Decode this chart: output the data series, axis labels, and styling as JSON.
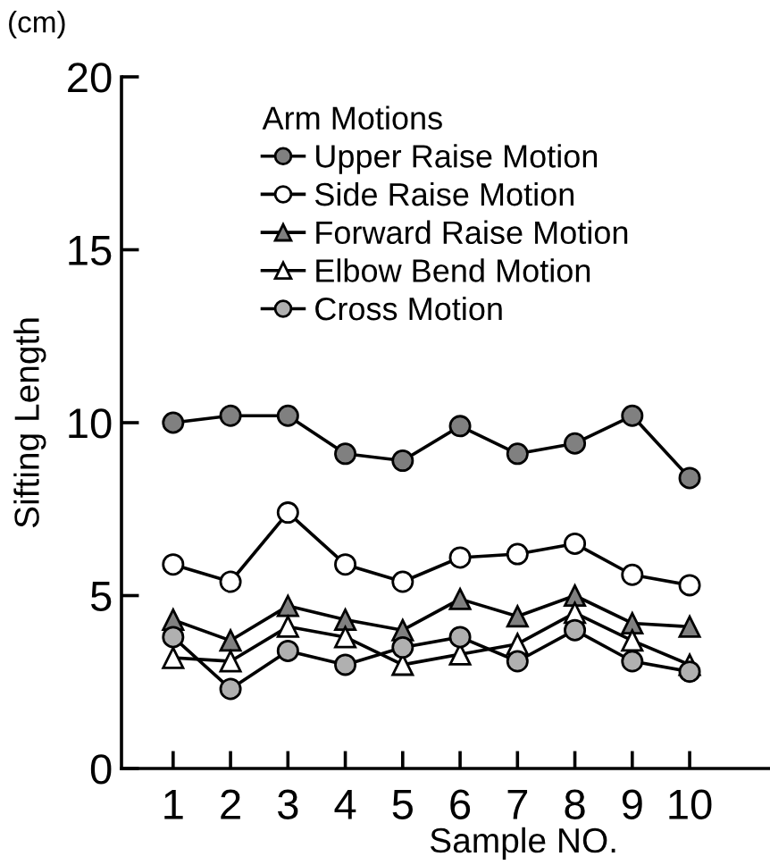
{
  "chart_data": {
    "type": "line",
    "xlabel": "Sample NO.",
    "ylabel": "Sifting Length",
    "legend_title": "Arm Motions",
    "annotations": [
      "(cm)"
    ],
    "x": [
      1,
      2,
      3,
      4,
      5,
      6,
      7,
      8,
      9,
      10
    ],
    "xlim": [
      0.1,
      11.4
    ],
    "xticks": [
      1,
      2,
      3,
      4,
      5,
      6,
      7,
      8,
      9,
      10
    ],
    "ylim": [
      0,
      20
    ],
    "yticks": [
      0,
      5,
      10,
      15,
      20
    ],
    "grid": false,
    "legend": "top",
    "line_style": "solid",
    "series": [
      {
        "name": "Upper Raise Motion",
        "color": "#808080",
        "marker": "circle",
        "values": [
          10.0,
          10.2,
          10.2,
          9.1,
          8.9,
          9.9,
          9.1,
          9.4,
          10.2,
          8.4
        ]
      },
      {
        "name": "Side Raise Motion",
        "color": "#ffffff",
        "marker": "circle",
        "values": [
          5.9,
          5.4,
          7.4,
          5.9,
          5.4,
          6.1,
          6.2,
          6.5,
          5.6,
          5.3
        ]
      },
      {
        "name": "Forward Raise Motion",
        "color": "#808080",
        "marker": "triangle",
        "values": [
          4.3,
          3.7,
          4.7,
          4.3,
          4.0,
          4.9,
          4.4,
          5.0,
          4.2,
          4.1
        ]
      },
      {
        "name": "Elbow Bend Motion",
        "color": "#ffffff",
        "marker": "triangle",
        "values": [
          3.2,
          3.1,
          4.1,
          3.8,
          3.0,
          3.3,
          3.6,
          4.5,
          3.7,
          3.0
        ]
      },
      {
        "name": "Cross Motion",
        "color": "#b0b0b0",
        "marker": "circle",
        "values": [
          3.8,
          2.3,
          3.4,
          3.0,
          3.5,
          3.8,
          3.1,
          4.0,
          3.1,
          2.8
        ]
      }
    ]
  }
}
